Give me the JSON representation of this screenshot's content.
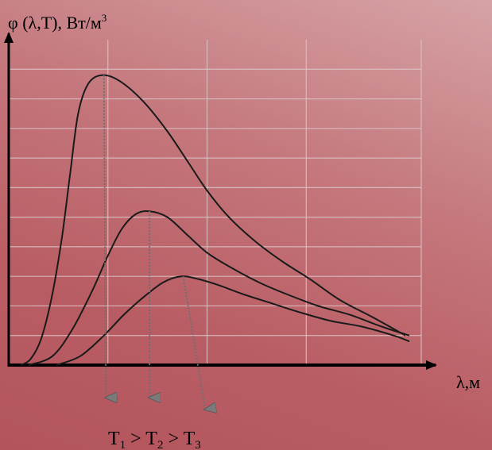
{
  "chart_data": {
    "type": "line",
    "ylabel": {
      "prefix": "φ (λ,T), Вт/м",
      "sup": "3"
    },
    "xlabel": "λ,м",
    "annotation": {
      "symbol": "T",
      "subscripts": [
        "1",
        "2",
        "3"
      ],
      "separator": " > "
    },
    "grid": true,
    "legend": "none",
    "series": [
      {
        "x": [
          0.3,
          0.55,
          0.82,
          1.1,
          1.35,
          1.55,
          1.75,
          2.0,
          2.35,
          2.8,
          3.4,
          4.0,
          4.55,
          5.0,
          5.55,
          6.2,
          6.9,
          7.6,
          8.35,
          9.2,
          10.0
        ],
        "y": [
          0.0,
          0.2,
          0.9,
          2.4,
          4.4,
          6.5,
          8.5,
          9.5,
          9.8,
          9.6,
          8.9,
          7.9,
          6.8,
          5.9,
          5.0,
          4.2,
          3.5,
          2.9,
          2.2,
          1.6,
          1.0
        ],
        "color": "#1a1a1a"
      },
      {
        "x": [
          0.5,
          1.1,
          1.6,
          2.1,
          2.5,
          2.85,
          3.2,
          3.55,
          4.0,
          4.5,
          5.0,
          5.6,
          6.3,
          7.0,
          7.8,
          8.6,
          9.4,
          10.1
        ],
        "y": [
          0.0,
          0.3,
          1.2,
          2.5,
          3.7,
          4.6,
          5.1,
          5.2,
          5.0,
          4.4,
          3.8,
          3.3,
          2.8,
          2.4,
          2.0,
          1.7,
          1.3,
          1.0
        ],
        "color": "#1a1a1a"
      },
      {
        "x": [
          1.2,
          1.8,
          2.4,
          2.9,
          3.4,
          3.9,
          4.35,
          4.8,
          5.3,
          5.9,
          6.6,
          7.3,
          8.1,
          8.9,
          9.7,
          10.1
        ],
        "y": [
          0.0,
          0.3,
          1.0,
          1.7,
          2.3,
          2.8,
          3.0,
          2.9,
          2.7,
          2.4,
          2.1,
          1.8,
          1.5,
          1.3,
          1.0,
          0.8
        ],
        "color": "#1a1a1a"
      }
    ],
    "peak_arrows": {
      "from": [
        [
          2.4,
          9.8
        ],
        [
          3.55,
          5.2
        ],
        [
          4.4,
          3.0
        ]
      ],
      "to": [
        [
          2.45,
          -1.1
        ],
        [
          3.55,
          -1.1
        ],
        [
          4.95,
          -1.5
        ]
      ],
      "color": "#6f6f6f"
    },
    "xlim": [
      0,
      10.4
    ],
    "ylim": [
      0,
      11
    ],
    "y_grid_lines": 10,
    "x_grid_lines": [
      2.5,
      5.0,
      7.5
    ]
  }
}
